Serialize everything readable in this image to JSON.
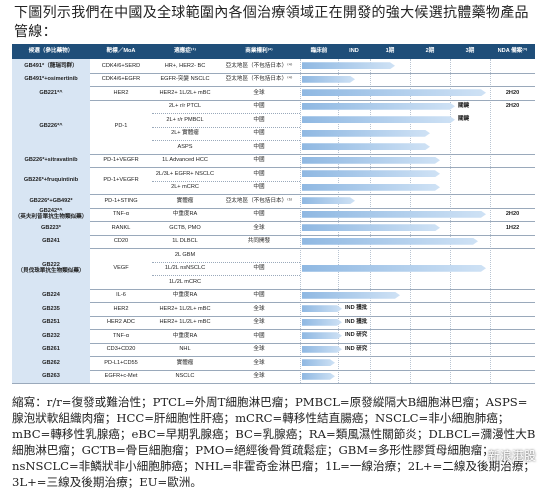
{
  "intro": "下圖列示我們在中國及全球範圍內各個治療領域正在開發的強大候選抗體藥物產品管線：",
  "table": {
    "header": [
      "候選（參比藥物）",
      "靶標／MoA",
      "適應症⁽¹⁾",
      "商業權利⁽²⁾",
      "臨床前",
      "IND",
      "1期",
      "2期",
      "3期",
      "NDA 備案⁽³⁾"
    ],
    "rows": [
      {
        "candidate": "GB491*（龍瑞司群）",
        "target": "CDK4/6+SERD",
        "indications": [
          {
            "indication": "HR+, HER2- BC",
            "rights": "亞太地區（不包括日本）⁽⁴⁾"
          }
        ]
      },
      {
        "candidate": "GB491*+osimertinib",
        "target": "CDK4/6+EGFR",
        "indications": [
          {
            "indication": "EGFR-突變 NSCLC",
            "rights": "亞太地區（不包括日本）⁽⁴⁾"
          }
        ]
      },
      {
        "candidate": "GB221*^",
        "target": "HER2",
        "indications": [
          {
            "indication": "HER2+ 1L/2L+ mBC",
            "rights": "全球",
            "nda": "2H20"
          }
        ]
      },
      {
        "candidate": "GB226*^",
        "target": "PD-1",
        "indications": [
          {
            "indication": "2L+ r/r PTCL",
            "rights": "中國",
            "label": "關鍵",
            "nda": "2H20"
          },
          {
            "indication": "2L+ r/r PMBCL",
            "rights": "中國",
            "label": "關鍵"
          },
          {
            "indication": "2L+ 實體瘤",
            "rights": "中國"
          },
          {
            "indication": "ASPS",
            "rights": "中國"
          }
        ]
      },
      {
        "candidate": "GB226*+sitravatinib",
        "target": "PD-1+VEGFR",
        "indications": [
          {
            "indication": "1L Advanced HCC",
            "rights": "中國"
          }
        ]
      },
      {
        "candidate": "GB226*+fruquintinib",
        "target": "PD-1+VEGFR",
        "indications": [
          {
            "indication": "2L/3L+ EGFR+ NSCLC",
            "rights": "中國"
          },
          {
            "indication": "2L+ mCRC",
            "rights": "中國"
          }
        ]
      },
      {
        "candidate": "GB226*+GB492*",
        "target": "PD-1+STING",
        "indications": [
          {
            "indication": "實體瘤",
            "rights": "亞太地區（不包括日本）⁽⁵⁾"
          }
        ]
      },
      {
        "candidate": "GB242*^",
        "subtitle": "（英夫利昔單抗生物類似藥）",
        "target": "TNF-α",
        "indications": [
          {
            "indication": "中重度RA",
            "rights": "中國",
            "nda": "2H20"
          }
        ]
      },
      {
        "candidate": "GB223*",
        "target": "RANKL",
        "indications": [
          {
            "indication": "GCTB, PMO",
            "rights": "全球",
            "nda": "1H22"
          }
        ]
      },
      {
        "candidate": "GB241",
        "target": "CD20",
        "indications": [
          {
            "indication": "1L DLBCL",
            "rights": "共同開發"
          }
        ]
      },
      {
        "candidate": "GB222",
        "subtitle": "（貝伐珠單抗生物類似藥）",
        "target": "VEGF",
        "rights": "中國",
        "indications": [
          {
            "indication": "2L GBM"
          },
          {
            "indication": "1L/2L nsNSCLC"
          },
          {
            "indication": "1L/2L mCRC"
          }
        ]
      },
      {
        "candidate": "GB224",
        "target": "IL-6",
        "indications": [
          {
            "indication": "中重度RA",
            "rights": "中國"
          }
        ]
      },
      {
        "candidate": "GB235",
        "target": "HER2",
        "indications": [
          {
            "indication": "HER2+ 1L/2L+ mBC",
            "rights": "全球",
            "label": "IND 獲批"
          }
        ]
      },
      {
        "candidate": "GB251",
        "target": "HER2 ADC",
        "indications": [
          {
            "indication": "HER2+ 1L/2L+ mBC",
            "rights": "全球",
            "label": "IND 獲批"
          }
        ]
      },
      {
        "candidate": "GB232",
        "target": "TNF-α",
        "indications": [
          {
            "indication": "中重度RA",
            "rights": "中國",
            "label": "IND 研究"
          }
        ]
      },
      {
        "candidate": "GB261",
        "target": "CD3+CD20",
        "indications": [
          {
            "indication": "NHL",
            "rights": "全球",
            "label": "IND 研究"
          }
        ]
      },
      {
        "candidate": "GB262",
        "target": "PD-L1+CD55",
        "indications": [
          {
            "indication": "實體瘤",
            "rights": "全球"
          }
        ]
      },
      {
        "candidate": "GB263",
        "target": "EGFR+c-Met",
        "indications": [
          {
            "indication": "NSCLC",
            "rights": "全球"
          }
        ]
      }
    ]
  },
  "footnote": "縮寫：r/r=復發或難治性；PTCL=外周T細胞淋巴瘤；PMBCL=原發縱隔大B細胞淋巴瘤；ASPS=腺泡狀軟組織肉瘤；HCC=肝細胞性肝癌；mCRC=轉移性結直腸癌；NSCLC=非小細胞肺癌；mBC=轉移性乳腺癌；eBC=早期乳腺癌；BC=乳腺癌；RA=類風濕性關節炎；DLBCL=瀰漫性大B細胞淋巴瘤；GCTB=骨巨細胞瘤；PMO=絕經後骨質疏鬆症；GBM=多形性膠質母細胞瘤；nsNSCLC=非鱗狀非小細胞肺癌；NHL=非霍奇金淋巴瘤；1L=一線治療；2L+=二線及後期治療；3L+=三線及後期治療；EU=歐洲。",
  "watermark": "新浪港股"
}
